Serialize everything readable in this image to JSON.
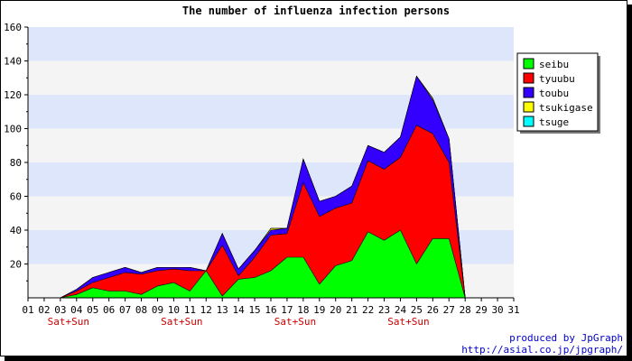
{
  "chart_data": {
    "type": "area",
    "stacked": true,
    "title": "The number of influenza infection persons",
    "xlabel": "",
    "ylabel": "",
    "ylim": [
      0,
      160
    ],
    "yticks": [
      20,
      40,
      60,
      80,
      100,
      120,
      140,
      160
    ],
    "grid": "alternating horizontal bands",
    "band_colors": [
      "#dde6fb",
      "#f4f4f4"
    ],
    "legend_position": "top-right",
    "categories": [
      "01",
      "02",
      "03",
      "04",
      "05",
      "06",
      "07",
      "08",
      "09",
      "10",
      "11",
      "12",
      "13",
      "14",
      "15",
      "16",
      "17",
      "18",
      "19",
      "20",
      "21",
      "22",
      "23",
      "24",
      "25",
      "26",
      "27",
      "28",
      "29",
      "30",
      "31"
    ],
    "weekend_label": "Sat+Sun",
    "weekend_marks": [
      "03/04",
      "10/11",
      "17/18",
      "24/25"
    ],
    "series": [
      {
        "name": "seibu",
        "color": "#00ff00",
        "values": [
          0,
          0,
          0,
          2,
          6,
          4,
          4,
          2,
          7,
          9,
          4,
          16,
          1,
          11,
          12,
          16,
          24,
          24,
          8,
          19,
          22,
          39,
          34,
          40,
          20,
          35,
          35,
          0,
          0,
          0,
          0
        ]
      },
      {
        "name": "tyuubu",
        "color": "#ff0000",
        "values": [
          0,
          0,
          0,
          2,
          3,
          8,
          11,
          12,
          9,
          8,
          12,
          0,
          30,
          2,
          12,
          21,
          14,
          44,
          40,
          34,
          34,
          42,
          42,
          43,
          82,
          62,
          45,
          0,
          0,
          0,
          0
        ]
      },
      {
        "name": "toubu",
        "color": "#3300ff",
        "values": [
          0,
          0,
          0,
          1,
          3,
          3,
          3,
          1,
          2,
          1,
          2,
          0,
          7,
          4,
          4,
          3,
          3,
          14,
          9,
          7,
          10,
          9,
          10,
          12,
          29,
          20,
          14,
          0,
          0,
          0,
          0
        ]
      },
      {
        "name": "tsukigase",
        "color": "#ffff00",
        "values": [
          0,
          0,
          0,
          0,
          0,
          0,
          0,
          0,
          0,
          0,
          0,
          0,
          0,
          0,
          0,
          1,
          0,
          0,
          0,
          0,
          0,
          0,
          0,
          0,
          0,
          1,
          0,
          0,
          0,
          0,
          0
        ]
      },
      {
        "name": "tsuge",
        "color": "#00ffff",
        "values": [
          0,
          0,
          0,
          0,
          0,
          0,
          0,
          0,
          0,
          0,
          0,
          0,
          0,
          0,
          0,
          0,
          0,
          0,
          0,
          0,
          0,
          0,
          0,
          0,
          0,
          0,
          0,
          0,
          0,
          0,
          0
        ]
      }
    ],
    "credit": [
      "produced by JpGraph",
      "http://asial.co.jp/jpgraph/"
    ]
  }
}
